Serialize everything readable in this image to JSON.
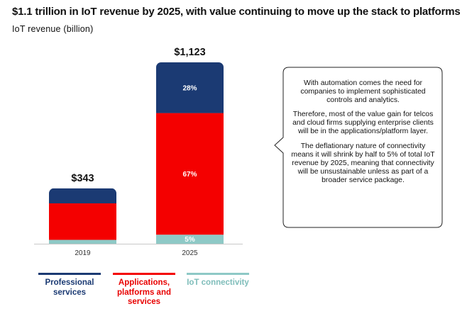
{
  "header": {
    "title": "$1.1 trillion in IoT revenue by 2025, with value continuing to move up the stack to platforms",
    "subtitle": "IoT revenue (billion)"
  },
  "colors": {
    "professional": "#1b3a73",
    "applications": "#f40000",
    "connectivity": "#8ec9c6"
  },
  "chart_data": {
    "type": "bar",
    "stacked": true,
    "title": "$1.1 trillion in IoT revenue by 2025, with value continuing to move up the stack to platforms",
    "ylabel": "IoT revenue (billion)",
    "xlabel": "",
    "categories": [
      "2019",
      "2025"
    ],
    "totals": [
      343,
      1123
    ],
    "total_labels": [
      "$343",
      "$1,123"
    ],
    "ylim": [
      0,
      1123
    ],
    "series": [
      {
        "name": "IoT connectivity",
        "values": [
          24,
          56
        ],
        "labels": [
          "",
          "5%"
        ]
      },
      {
        "name": "Applications, platforms and services",
        "values": [
          226,
          753
        ],
        "labels": [
          "",
          "67%"
        ]
      },
      {
        "name": "Professional services",
        "values": [
          93,
          314
        ],
        "labels": [
          "",
          "28%"
        ]
      }
    ]
  },
  "callout": {
    "paragraphs": [
      "With automation comes the need for companies to implement sophisticated controls and analytics.",
      "Therefore, most of the value gain for telcos and cloud firms supplying enterprise clients will be in the applications/platform layer.",
      "The deflationary nature of connectivity means it will shrink by half to 5% of total IoT revenue by 2025, meaning that connectivity will be unsustainable unless as part of a broader service package."
    ]
  },
  "legend": [
    {
      "label": "Professional services",
      "color": "#1b3a73"
    },
    {
      "label": "Applications, platforms and services",
      "color": "#f40000"
    },
    {
      "label": "IoT connectivity",
      "color": "#8ec9c6"
    }
  ]
}
